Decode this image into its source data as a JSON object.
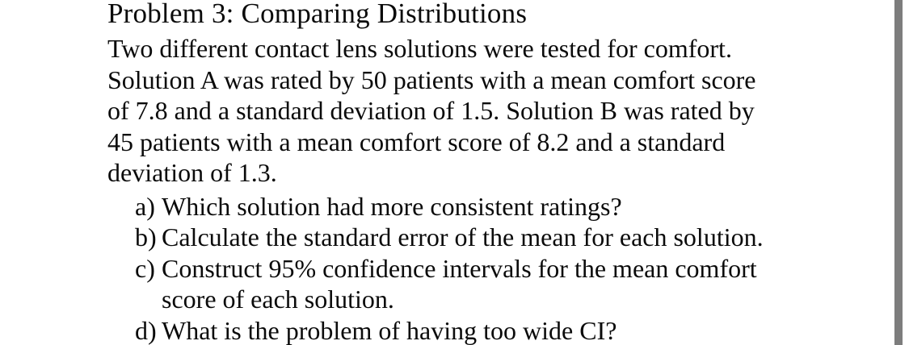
{
  "page": {
    "title": "Problem 3: Comparing Distributions",
    "paragraph": {
      "lines": [
        "Two different contact lens solutions were tested for comfort.",
        "Solution A was rated by 50 patients with a mean comfort score",
        "of 7.8 and a standard deviation of 1.5. Solution B was rated by",
        "45 patients with a mean comfort score of 8.2 and a standard",
        "deviation of 1.3."
      ]
    },
    "list": {
      "items": [
        {
          "label": "a)",
          "lines": [
            "Which solution had more consistent ratings?"
          ]
        },
        {
          "label": "b)",
          "lines": [
            "Calculate the standard error of the mean for each solution."
          ]
        },
        {
          "label": "c)",
          "lines": [
            "Construct 95% confidence intervals for the mean comfort",
            "score of each solution."
          ]
        },
        {
          "label": "d)",
          "lines": [
            "What is the problem of having too wide CI?"
          ]
        }
      ]
    },
    "colors": {
      "background": "#ffffff",
      "text": "#0b0b0b",
      "scrollbar_thumb": "#7d7d7d"
    }
  }
}
